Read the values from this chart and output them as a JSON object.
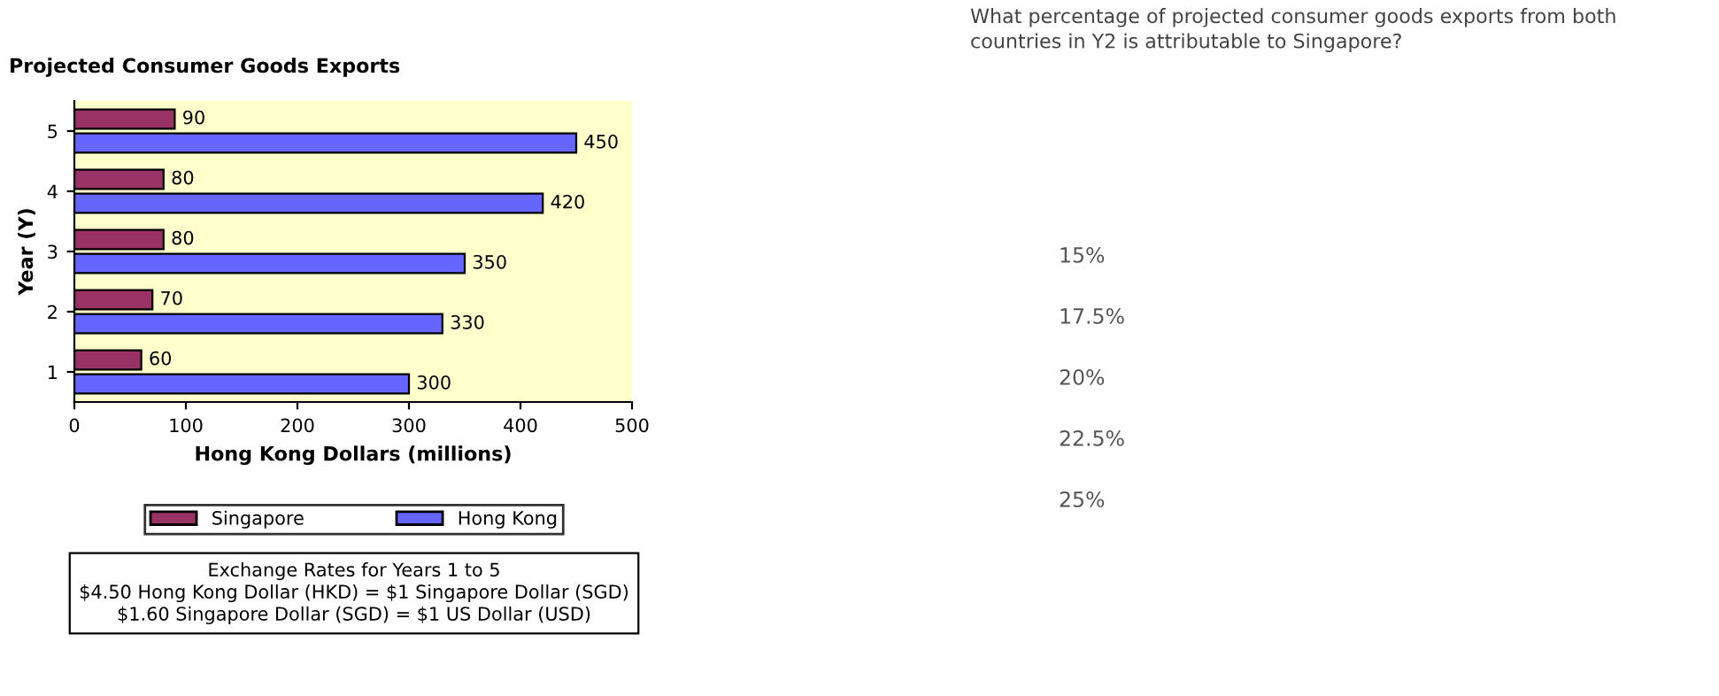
{
  "chart_data": {
    "type": "bar",
    "orientation": "horizontal",
    "title": "Projected Consumer Goods Exports",
    "xlabel": "Hong Kong Dollars (millions)",
    "ylabel": "Year (Y)",
    "categories": [
      "5",
      "4",
      "3",
      "2",
      "1"
    ],
    "series": [
      {
        "name": "Singapore",
        "color": "#993366",
        "values": [
          90,
          80,
          80,
          70,
          60
        ]
      },
      {
        "name": "Hong Kong",
        "color": "#6666ff",
        "values": [
          450,
          420,
          350,
          330,
          300
        ]
      }
    ],
    "xlim": [
      0,
      500
    ],
    "xticks": [
      0,
      100,
      200,
      300,
      400,
      500
    ],
    "data_labels": true,
    "legend": "bottom",
    "grid": false,
    "annotations": [
      "Exchange Rates for Years 1 to 5\n$4.50 Hong Kong Dollar (HKD) = $1 Singapore Dollar (SGD)\n$1.60 Singapore Dollar (SGD) = $1 US Dollar (USD)",
      "What percentage of projected consumer goods exports from both\ncountries in Y2 is attributable to Singapore?",
      "15%",
      "17.5%",
      "20%",
      "22.5%",
      "25%"
    ]
  }
}
